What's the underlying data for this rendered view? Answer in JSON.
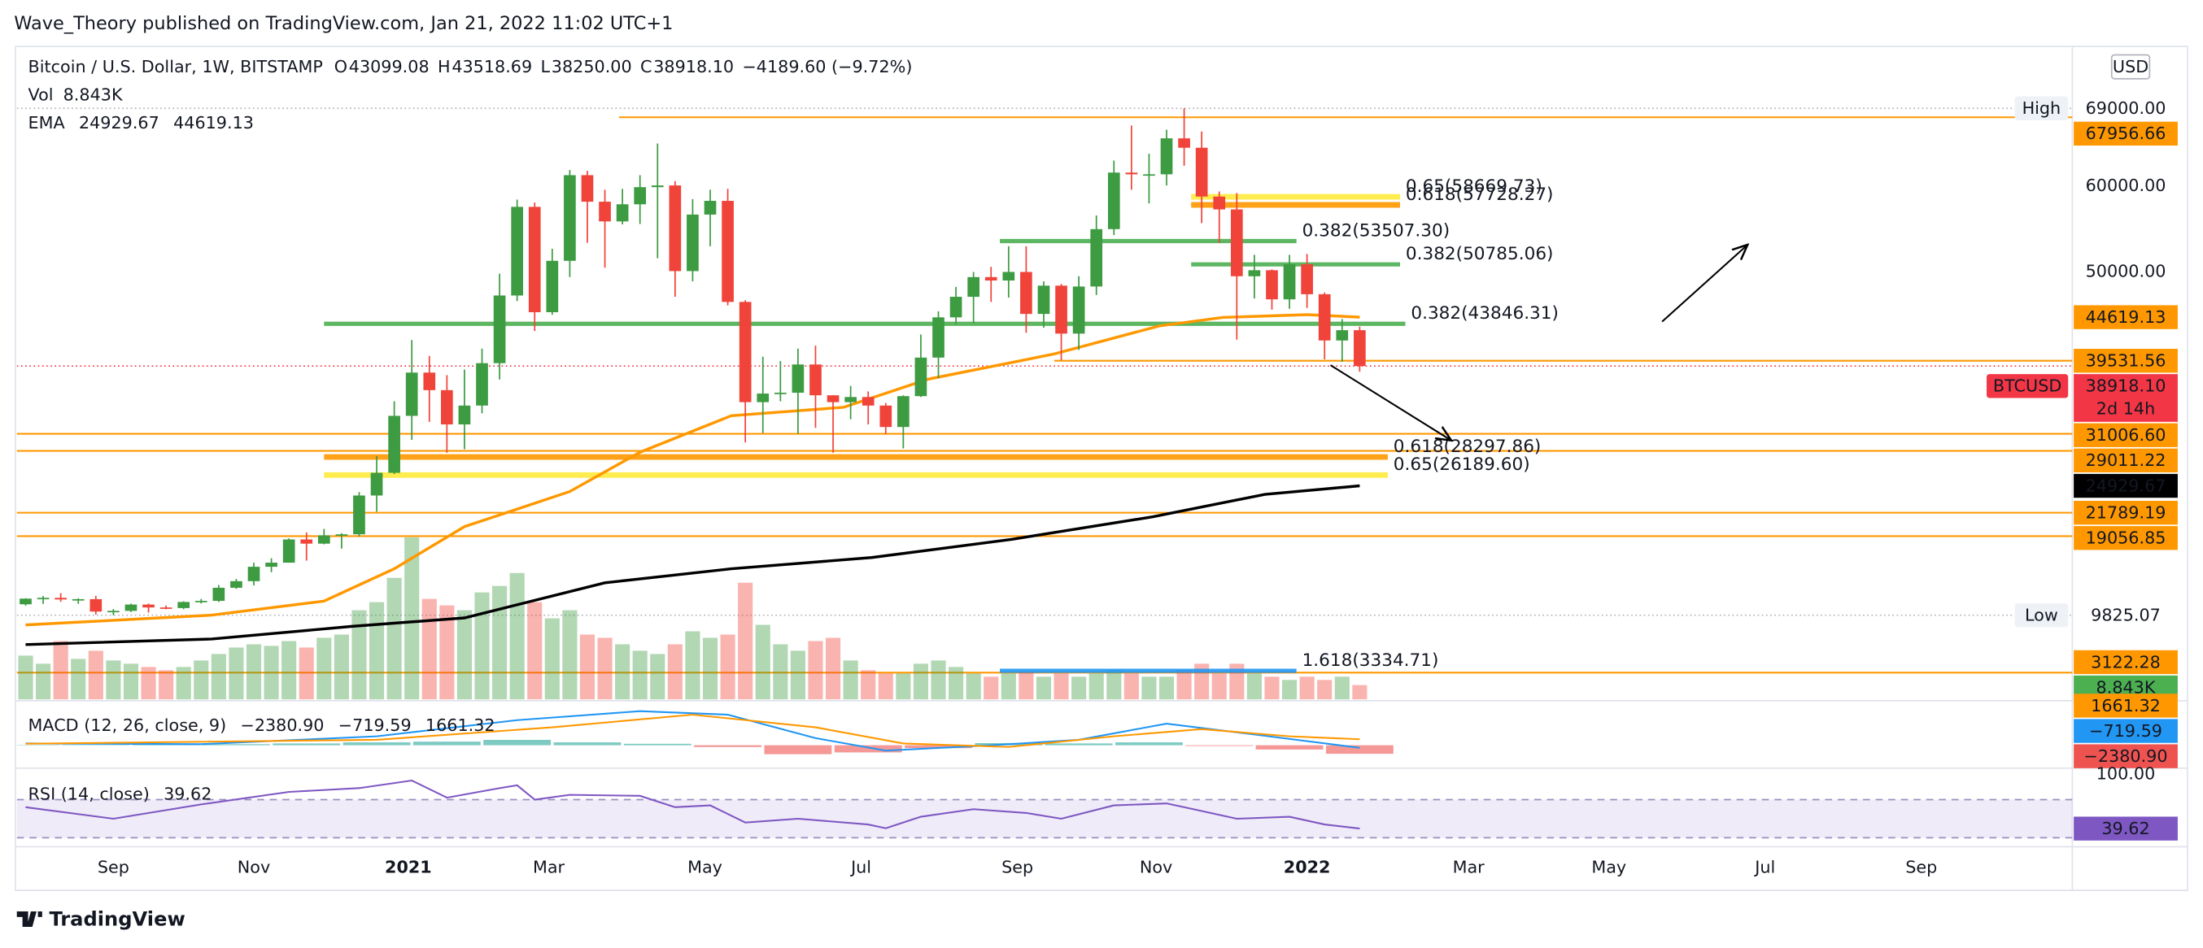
{
  "header": {
    "publisher": "Wave_Theory published on TradingView.com, Jan 21, 2022 11:02 UTC+1"
  },
  "footer": {
    "brand": "TradingView"
  },
  "chart_data": {
    "type": "candlestick",
    "symbol": "Bitcoin / U.S. Dollar, 1W, BITSTAMP",
    "currency": "USD",
    "ohlc_legend": [
      {
        "label": "O",
        "value": "43099.08"
      },
      {
        "label": "H",
        "value": "43518.69"
      },
      {
        "label": "L",
        "value": "38250.00"
      },
      {
        "label": "C",
        "value": "38918.10"
      }
    ],
    "change": "−4189.60 (−9.72%)",
    "legend_color": "#f23645",
    "up_color": "#3d9b41",
    "down_color": "#f0443a",
    "x": [
      0,
      1,
      2,
      3,
      4,
      5,
      6,
      7,
      8,
      9,
      10,
      11,
      12,
      13,
      14,
      15,
      16,
      17,
      18,
      19,
      20,
      21,
      22,
      23,
      24,
      25,
      26,
      27,
      28,
      29,
      30,
      31,
      32,
      33,
      34,
      35,
      36,
      37,
      38,
      39,
      40,
      41,
      42,
      43,
      44,
      45,
      46,
      47,
      48,
      49,
      50,
      51,
      52,
      53,
      54,
      55,
      56,
      57,
      58,
      59,
      60,
      61,
      62,
      63,
      64,
      65,
      66,
      67,
      68,
      69,
      70,
      71,
      72,
      73,
      74,
      75,
      76
    ],
    "open": [
      11100,
      11760,
      11850,
      11660,
      11700,
      10250,
      10330,
      11070,
      10730,
      10660,
      11370,
      11500,
      13030,
      13800,
      15480,
      15960,
      18670,
      18180,
      19150,
      19270,
      23800,
      26450,
      33100,
      38150,
      36100,
      32100,
      34300,
      39250,
      47150,
      57500,
      45200,
      51200,
      61200,
      58100,
      55800,
      57800,
      59800,
      60000,
      50000,
      56600,
      58200,
      46400,
      34700,
      35700,
      35800,
      39100,
      35500,
      34700,
      35300,
      34300,
      31800,
      35400,
      39900,
      44600,
      47000,
      49300,
      48900,
      49900,
      45000,
      48300,
      42700,
      48200,
      54900,
      61500,
      61300,
      61300,
      65500,
      64400,
      58700,
      57200,
      49400,
      50100,
      46700,
      50800,
      47300,
      41900,
      43099.08
    ],
    "high": [
      11800,
      12070,
      12400,
      11800,
      12090,
      10550,
      11180,
      11180,
      10950,
      11440,
      11720,
      13350,
      14050,
      15950,
      16480,
      18800,
      19480,
      19900,
      19400,
      24200,
      28400,
      34800,
      41950,
      40100,
      37850,
      38500,
      40950,
      49700,
      58350,
      58000,
      52600,
      61800,
      61700,
      59500,
      59600,
      61200,
      64900,
      60500,
      58400,
      59500,
      59600,
      46600,
      40000,
      39500,
      40950,
      41300,
      35500,
      36600,
      35950,
      34600,
      35500,
      42600,
      45300,
      48150,
      49900,
      50500,
      52900,
      52900,
      48800,
      48500,
      49400,
      56500,
      62900,
      67000,
      63700,
      66500,
      69000,
      66300,
      59300,
      59100,
      51900,
      50200,
      51900,
      52000,
      47500,
      44400,
      43518.69
    ],
    "low": [
      10950,
      11150,
      11400,
      11150,
      9900,
      9825.07,
      10200,
      10140,
      10520,
      10530,
      11200,
      11380,
      12900,
      13300,
      14850,
      15950,
      16200,
      18100,
      17600,
      19000,
      21900,
      26300,
      30300,
      32400,
      28800,
      29200,
      33400,
      37350,
      46500,
      43000,
      44900,
      49300,
      53300,
      50400,
      55450,
      55500,
      51500,
      47000,
      48800,
      52900,
      46000,
      30000,
      31100,
      34800,
      31000,
      31700,
      28800,
      32700,
      32100,
      31000,
      29300,
      35300,
      37500,
      43800,
      43900,
      46400,
      46900,
      42800,
      43400,
      39600,
      40800,
      47200,
      54200,
      59500,
      57900,
      60000,
      62300,
      55600,
      53300,
      42000,
      46800,
      45500,
      45600,
      45700,
      39700,
      39400,
      38250
    ],
    "close": [
      11760,
      11850,
      11660,
      11700,
      10250,
      10330,
      11070,
      10730,
      10660,
      11370,
      11500,
      13030,
      13800,
      15480,
      15960,
      18670,
      18180,
      19150,
      19270,
      23800,
      26450,
      33100,
      38150,
      36100,
      32100,
      34300,
      39250,
      47150,
      57500,
      45200,
      51200,
      61200,
      58100,
      55800,
      57800,
      59800,
      60000,
      50000,
      56600,
      58200,
      46400,
      34700,
      35700,
      35800,
      39100,
      35500,
      34700,
      35300,
      34300,
      31800,
      35400,
      39900,
      44600,
      47000,
      49300,
      48900,
      49900,
      45000,
      48300,
      42700,
      48200,
      54900,
      61500,
      61300,
      61300,
      65500,
      64400,
      58700,
      57200,
      49400,
      50100,
      46700,
      50800,
      47300,
      41900,
      43099.08,
      38918.1
    ],
    "xlim": [
      -0.5,
      116.6
    ],
    "xticks": [
      {
        "value": 5.0,
        "label": "Sep"
      },
      {
        "value": 13.0,
        "label": "Nov"
      },
      {
        "value": 21.8,
        "label": "2021"
      },
      {
        "value": 29.8,
        "label": "Mar"
      },
      {
        "value": 38.7,
        "label": "May"
      },
      {
        "value": 47.6,
        "label": "Jul"
      },
      {
        "value": 56.5,
        "label": "Sep"
      },
      {
        "value": 64.4,
        "label": "Nov"
      },
      {
        "value": 73.0,
        "label": "2022"
      },
      {
        "value": 82.2,
        "label": "Mar"
      },
      {
        "value": 90.2,
        "label": "May"
      },
      {
        "value": 99.1,
        "label": "Jul"
      },
      {
        "value": 108.0,
        "label": "Sep"
      }
    ],
    "ylim": [
      0,
      75900
    ],
    "yticks": [
      {
        "value": 50000,
        "label": "50000.00"
      },
      {
        "value": 60000,
        "label": "60000.00"
      }
    ],
    "high_marker": {
      "label": "High",
      "value": 69000,
      "value_label": "69000.00"
    },
    "low_marker": {
      "label": "Low",
      "value": 9825.07,
      "value_label": "9825.07"
    },
    "last_price": {
      "symbol": "BTCUSD",
      "value": 38918.1,
      "value_label": "38918.10",
      "countdown": "2d 14h",
      "color": "#f23645"
    },
    "price_tags": [
      {
        "value": 67956.66,
        "label": "67956.66",
        "color": "#ff9800",
        "line_from": 33.8
      },
      {
        "value": 39531.56,
        "label": "39531.56",
        "color": "#ff9800",
        "line_from": 58.6
      },
      {
        "value": 31006.6,
        "label": "31006.60",
        "color": "#ff9800",
        "line_from": -0.5
      },
      {
        "value": 29011.22,
        "label": "29011.22",
        "color": "#ff9800",
        "line_from": -0.5
      },
      {
        "value": 21789.19,
        "label": "21789.19",
        "color": "#ff9800",
        "line_from": -0.5
      },
      {
        "value": 19056.85,
        "label": "19056.85",
        "color": "#ff9800",
        "line_from": -0.5
      },
      {
        "value": 3122.28,
        "label": "3122.28",
        "color": "#ff9800",
        "line_from": -0.5
      }
    ],
    "fib_lines": [
      {
        "label": "0.65(58669.73)",
        "value": 58669.73,
        "color": "#ffeb3b",
        "from": 66.4,
        "to": 78.3,
        "width": 4
      },
      {
        "label": "0.618(57728.27)",
        "value": 57728.27,
        "color": "#ff9800",
        "from": 66.4,
        "to": 78.3,
        "width": 4
      },
      {
        "label": "0.382(53507.30)",
        "value": 53507.3,
        "color": "#4caf50",
        "from": 55.5,
        "to": 72.4,
        "width": 3
      },
      {
        "label": "0.382(50785.06)",
        "value": 50785.06,
        "color": "#4caf50",
        "from": 66.4,
        "to": 78.3,
        "width": 3
      },
      {
        "label": "0.382(43846.31)",
        "value": 43846.31,
        "color": "#4caf50",
        "from": 17,
        "to": 78.6,
        "width": 3
      },
      {
        "label": "0.618(28297.86)",
        "value": 28297.86,
        "color": "#ff9800",
        "from": 17,
        "to": 77.6,
        "width": 4
      },
      {
        "label": "0.65(26189.60)",
        "value": 26189.6,
        "color": "#ffeb3b",
        "from": 17,
        "to": 77.6,
        "width": 4
      },
      {
        "label": "1.618(3334.71)",
        "value": 3334.71,
        "color": "#2196f3",
        "from": 55.5,
        "to": 72.4,
        "width": 3
      }
    ],
    "ema": {
      "name": "EMA",
      "series": [
        {
          "color": "#000000",
          "value_label": "24929.67",
          "x": [
            0,
            10.6,
            18.6,
            25,
            33,
            40.2,
            48.2,
            56.2,
            64.2,
            70.6,
            76
          ],
          "values": [
            6390,
            7050,
            8520,
            9510,
            13610,
            15250,
            16560,
            18690,
            21310,
            23930,
            24929.67
          ]
        },
        {
          "color": "#ff9800",
          "value_label": "44619.13",
          "x": [
            0,
            10.6,
            17,
            21,
            25,
            31,
            35,
            40.2,
            46.6,
            51.4,
            58.6,
            64.6,
            68.2,
            73,
            76
          ],
          "values": [
            8690,
            9840,
            11480,
            15250,
            20160,
            24260,
            28850,
            33110,
            34100,
            37380,
            40330,
            43600,
            44590,
            44920,
            44619.13
          ]
        }
      ]
    },
    "volume": {
      "name": "Vol",
      "value_label": "8.843K",
      "color": "#4caf50",
      "ylim": [
        0,
        130
      ],
      "values": [
        27,
        22,
        36,
        25,
        30,
        24,
        22,
        20,
        18,
        20,
        24,
        28,
        32,
        34,
        33,
        36,
        32,
        38,
        40,
        55,
        60,
        75,
        100,
        62,
        58,
        55,
        66,
        70,
        78,
        60,
        50,
        55,
        40,
        38,
        34,
        30,
        28,
        34,
        42,
        38,
        40,
        72,
        46,
        34,
        30,
        36,
        38,
        24,
        18,
        16,
        16,
        22,
        24,
        20,
        16,
        14,
        16,
        17,
        14,
        16,
        14,
        16,
        18,
        16,
        14,
        14,
        18,
        22,
        16,
        22,
        16,
        14,
        12,
        14,
        12,
        14,
        8.843
      ]
    },
    "macd": {
      "title": "MACD (12, 26, close, 9)",
      "ylim": [
        -6000,
        12000
      ],
      "histogram": {
        "value_label": "−2380.90",
        "up_color": "#26a69a",
        "down_color": "#ef5350",
        "x": [
          0,
          4,
          8,
          12,
          16,
          20,
          24,
          28,
          32,
          36,
          40,
          44,
          48,
          52,
          56,
          60,
          64,
          68,
          72,
          76
        ],
        "values": [
          100,
          100,
          150,
          300,
          500,
          800,
          1000,
          1500,
          800,
          400,
          -500,
          -2500,
          -2000,
          -800,
          600,
          500,
          800,
          -200,
          -1200,
          -2380.9
        ]
      },
      "series": [
        {
          "color": "#2196f3",
          "value_label": "−719.59",
          "x": [
            0,
            10,
            20,
            28,
            35,
            40,
            45,
            49,
            55,
            60,
            65,
            70,
            76
          ],
          "values": [
            500,
            300,
            2500,
            7000,
            9500,
            8500,
            2000,
            -1500,
            0,
            1500,
            6000,
            3000,
            -719.59
          ]
        },
        {
          "color": "#ff9800",
          "value_label": "1661.32",
          "x": [
            0,
            20,
            30,
            38,
            45,
            50,
            56,
            62,
            67,
            72,
            76
          ],
          "values": [
            400,
            1500,
            5000,
            8500,
            5000,
            500,
            -500,
            2500,
            4500,
            2500,
            1661.32
          ]
        }
      ]
    },
    "rsi": {
      "title": "RSI (14, close)",
      "value_label": "39.62",
      "color": "#7e57c2",
      "ylim": [
        22,
        100
      ],
      "yticks": [
        {
          "value": 100,
          "label": "100.00"
        }
      ],
      "bands": [
        30,
        70
      ],
      "x": [
        0,
        5,
        10,
        15,
        19,
        22,
        24,
        27,
        28,
        29,
        31,
        35,
        37,
        39,
        41,
        44,
        48,
        49,
        51,
        54,
        57,
        59,
        62,
        65,
        67,
        69,
        72,
        74,
        76
      ],
      "values": [
        62,
        50,
        65,
        78,
        82,
        90,
        72,
        82,
        85,
        70,
        75,
        74,
        62,
        64,
        46,
        50,
        44,
        40,
        52,
        60,
        56,
        50,
        64,
        66,
        58,
        50,
        52,
        44,
        39.62
      ]
    }
  }
}
